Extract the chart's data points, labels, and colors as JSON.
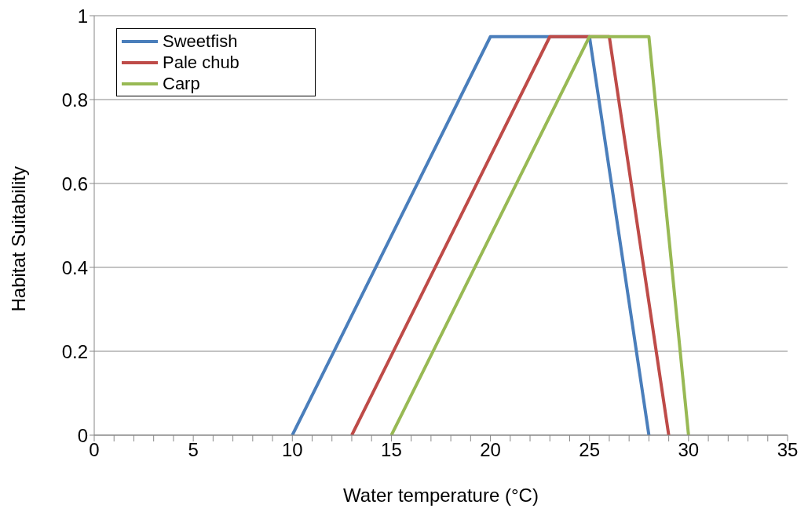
{
  "chart_data": {
    "type": "line",
    "xlabel": "Water temperature (°C)",
    "ylabel": "Habitat Suitability",
    "xlim": [
      0,
      35
    ],
    "ylim": [
      0,
      1
    ],
    "xticks": [
      0,
      {
        "value": 1,
        "label": null
      },
      {
        "value": 2,
        "label": null
      },
      {
        "value": 3,
        "label": null
      },
      {
        "value": 4,
        "label": null
      },
      5,
      {
        "value": 6,
        "label": null
      },
      {
        "value": 7,
        "label": null
      },
      {
        "value": 8,
        "label": null
      },
      {
        "value": 9,
        "label": null
      },
      10,
      {
        "value": 11,
        "label": null
      },
      {
        "value": 12,
        "label": null
      },
      {
        "value": 13,
        "label": null
      },
      {
        "value": 14,
        "label": null
      },
      15,
      {
        "value": 16,
        "label": null
      },
      {
        "value": 17,
        "label": null
      },
      {
        "value": 18,
        "label": null
      },
      {
        "value": 19,
        "label": null
      },
      20,
      {
        "value": 21,
        "label": null
      },
      {
        "value": 22,
        "label": null
      },
      {
        "value": 23,
        "label": null
      },
      {
        "value": 24,
        "label": null
      },
      25,
      {
        "value": 26,
        "label": null
      },
      {
        "value": 27,
        "label": null
      },
      {
        "value": 28,
        "label": null
      },
      {
        "value": 29,
        "label": null
      },
      30,
      {
        "value": 31,
        "label": null
      },
      {
        "value": 32,
        "label": null
      },
      {
        "value": 33,
        "label": null
      },
      {
        "value": 34,
        "label": null
      },
      35
    ],
    "yticks": [
      0,
      0.2,
      0.4,
      0.6,
      0.8,
      1
    ],
    "grid": "y",
    "legend": "top left",
    "marker": "none",
    "line_style": "solid",
    "series": [
      {
        "name": "Sweetfish",
        "color": "#4a7ebb",
        "x": [
          10,
          20,
          25,
          28
        ],
        "values": [
          0,
          0.95,
          0.95,
          0
        ]
      },
      {
        "name": "Pale chub",
        "color": "#be4b48",
        "x": [
          13,
          23,
          26,
          29
        ],
        "values": [
          0,
          0.95,
          0.95,
          0
        ]
      },
      {
        "name": "Carp",
        "color": "#98b954",
        "x": [
          15,
          25,
          28,
          30
        ],
        "values": [
          0,
          0.95,
          0.95,
          0
        ]
      }
    ]
  }
}
